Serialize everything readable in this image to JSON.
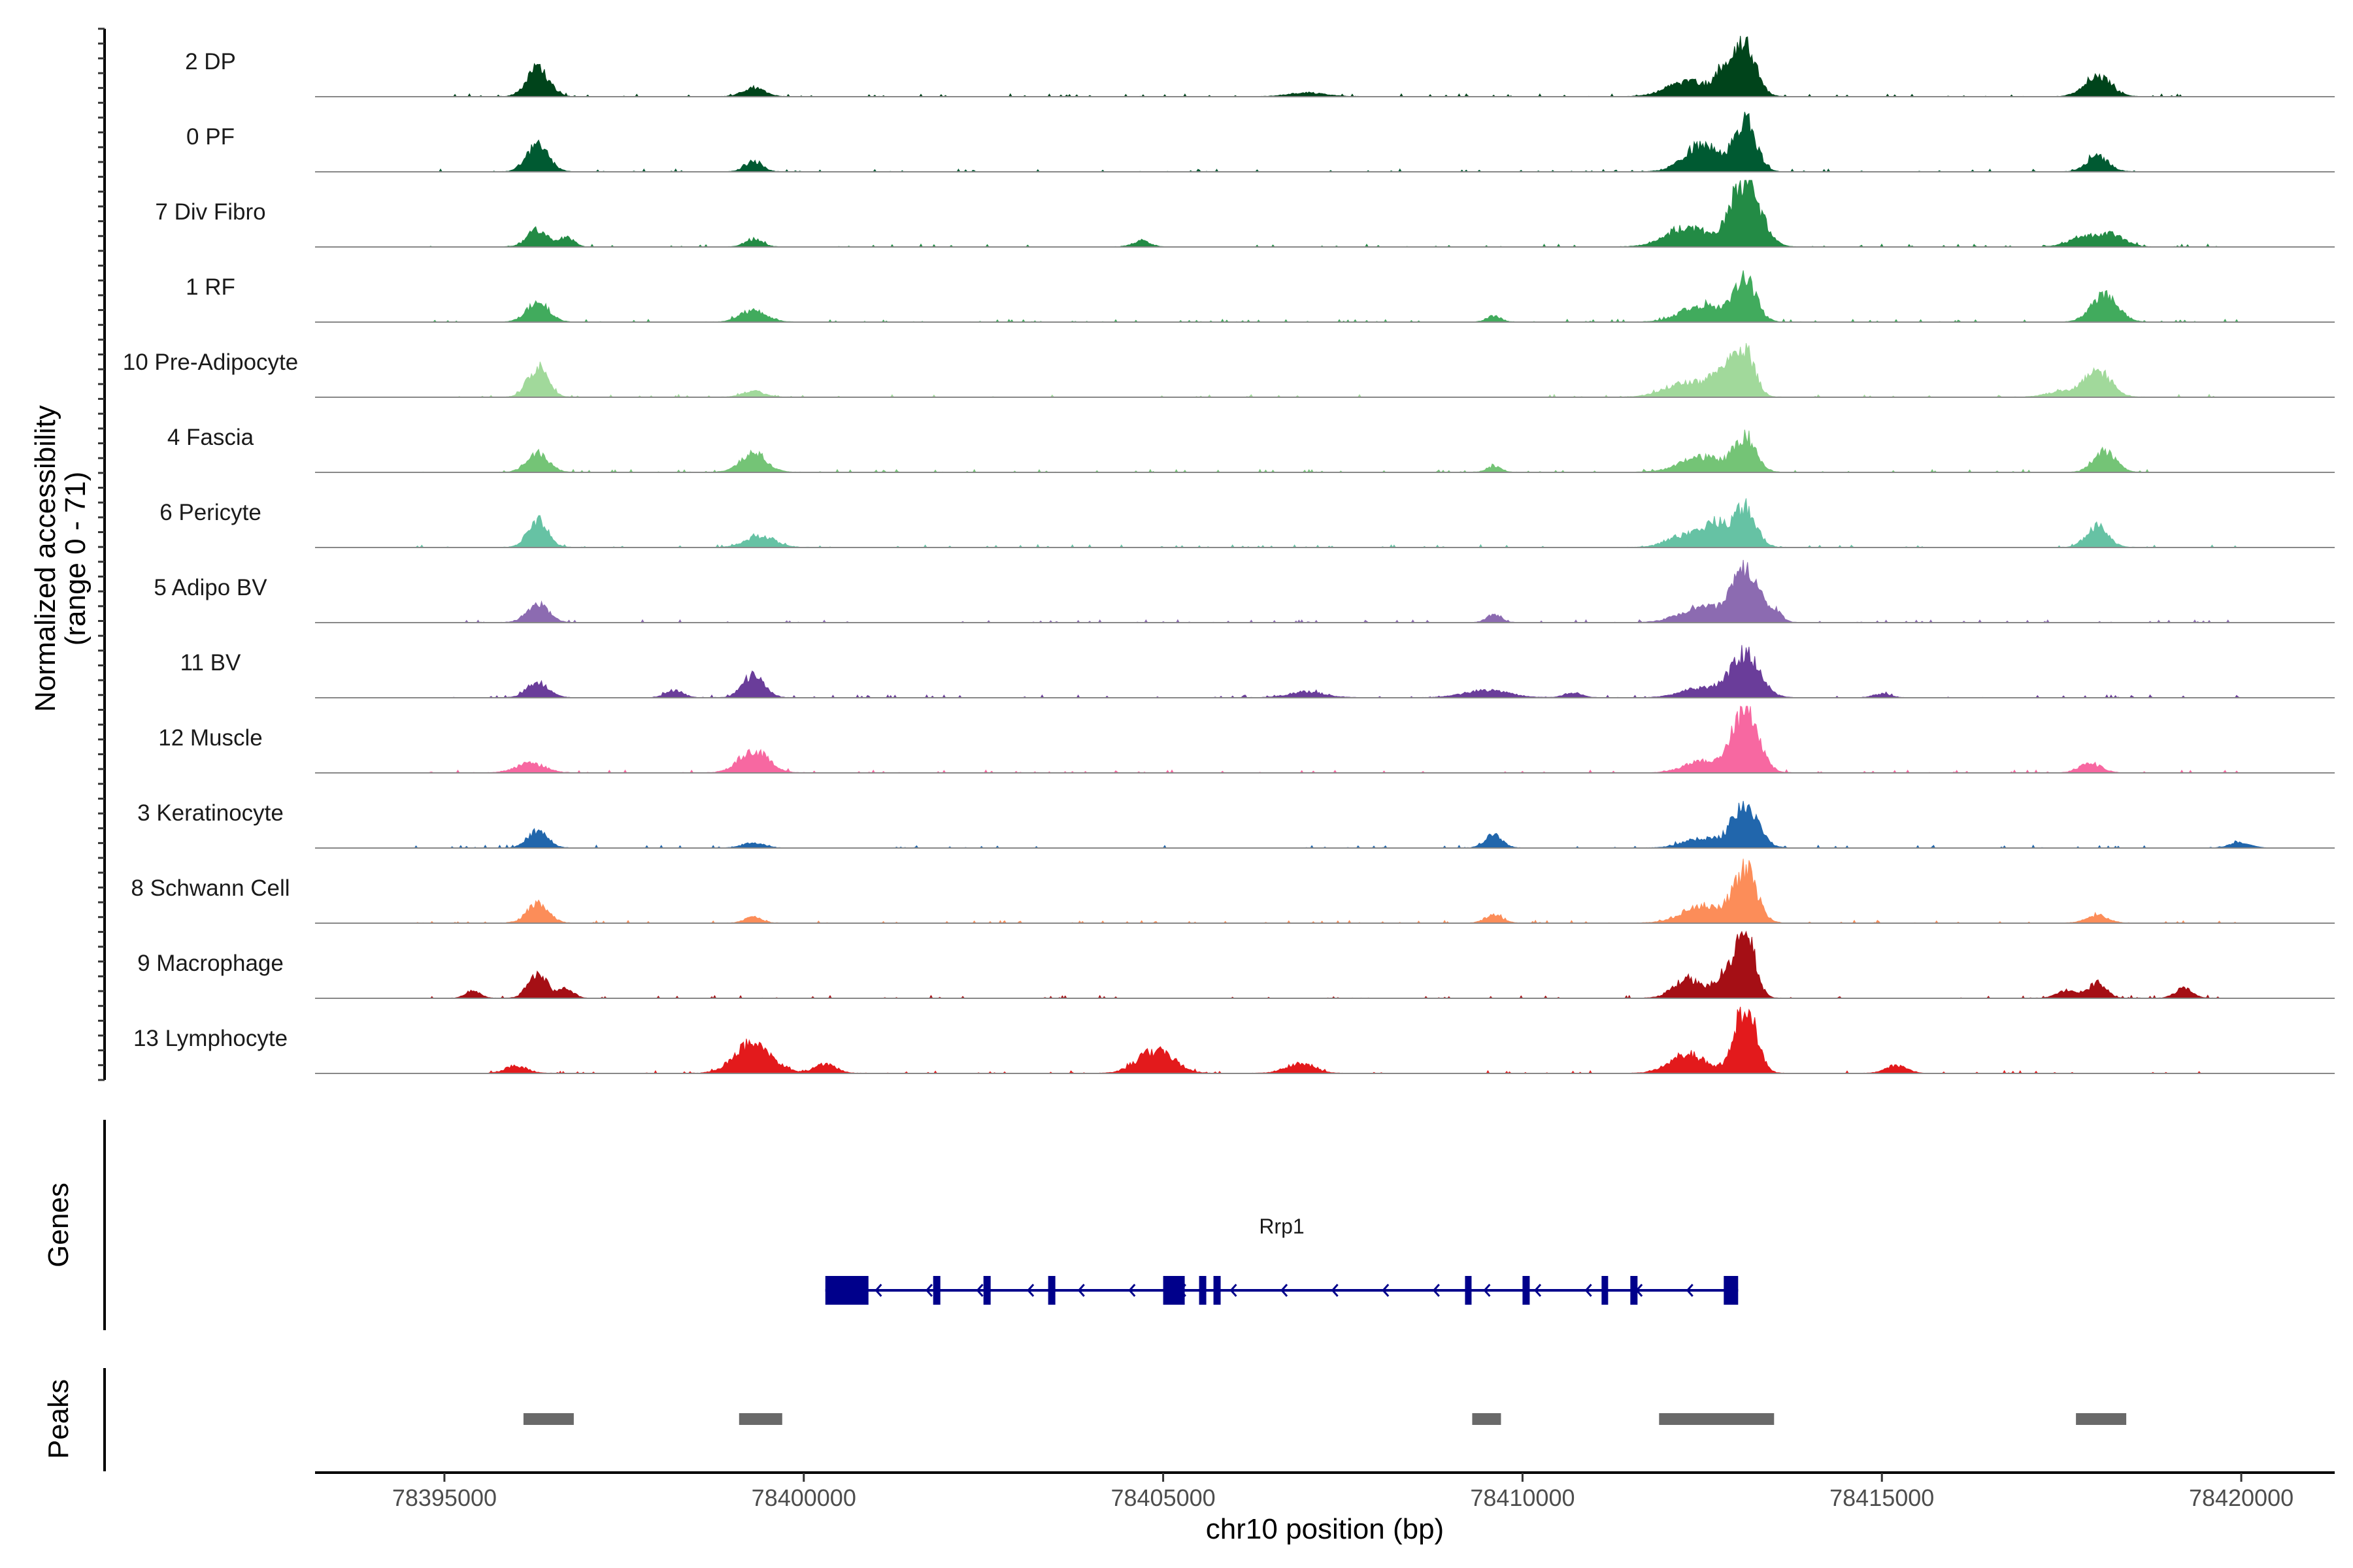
{
  "chart_data": {
    "type": "area",
    "title": "",
    "ylabel": "Normalized accessibility",
    "ylabel_range": "(range 0 - 71)",
    "ylim": [
      0,
      71
    ],
    "xlabel": "chr10 position (bp)",
    "xlim": [
      78393200,
      78421300
    ],
    "xticks": [
      78395000,
      78400000,
      78405000,
      78410000,
      78415000,
      78420000
    ],
    "xtick_labels": [
      "78395000",
      "78400000",
      "78405000",
      "78410000",
      "78415000",
      "78420000"
    ],
    "peak_centers": [
      78396300,
      78399300,
      78405000,
      78407000,
      78409600,
      78412500,
      78413100,
      78418000
    ],
    "series": [
      {
        "name": "2 DP",
        "color": "#00441b",
        "peaks": [
          [
            78396300,
            30,
            150
          ],
          [
            78399300,
            9,
            150
          ],
          [
            78407000,
            4,
            250
          ],
          [
            78412300,
            16,
            280
          ],
          [
            78412800,
            22,
            120
          ],
          [
            78413100,
            55,
            150
          ],
          [
            78418000,
            22,
            180
          ]
        ]
      },
      {
        "name": "0 PF",
        "color": "#005a32",
        "peaks": [
          [
            78396300,
            28,
            150
          ],
          [
            78399300,
            11,
            120
          ],
          [
            78412500,
            28,
            250
          ],
          [
            78413100,
            52,
            150
          ],
          [
            78418000,
            16,
            150
          ]
        ]
      },
      {
        "name": "7 Div Fibro",
        "color": "#238b45",
        "peaks": [
          [
            78396300,
            18,
            140
          ],
          [
            78396700,
            10,
            100
          ],
          [
            78399300,
            8,
            120
          ],
          [
            78404700,
            6,
            120
          ],
          [
            78412300,
            20,
            300
          ],
          [
            78413100,
            71,
            200
          ],
          [
            78417800,
            10,
            200
          ],
          [
            78418200,
            12,
            180
          ]
        ]
      },
      {
        "name": "1 RF",
        "color": "#41ab5d",
        "peaks": [
          [
            78396300,
            22,
            150
          ],
          [
            78399300,
            12,
            180
          ],
          [
            78409600,
            6,
            100
          ],
          [
            78412500,
            18,
            280
          ],
          [
            78413100,
            45,
            150
          ],
          [
            78418100,
            28,
            180
          ]
        ]
      },
      {
        "name": "10 Pre-Adipocyte",
        "color": "#a1d99b",
        "peaks": [
          [
            78396300,
            32,
            140
          ],
          [
            78399300,
            6,
            150
          ],
          [
            78412300,
            16,
            300
          ],
          [
            78412800,
            26,
            150
          ],
          [
            78413100,
            50,
            130
          ],
          [
            78417500,
            6,
            200
          ],
          [
            78418000,
            28,
            180
          ]
        ]
      },
      {
        "name": "4 Fascia",
        "color": "#74c476",
        "peaks": [
          [
            78396300,
            20,
            150
          ],
          [
            78399300,
            20,
            180
          ],
          [
            78409600,
            6,
            100
          ],
          [
            78412500,
            16,
            300
          ],
          [
            78413100,
            36,
            150
          ],
          [
            78418100,
            22,
            150
          ]
        ]
      },
      {
        "name": "6 Pericyte",
        "color": "#66c2a4",
        "peaks": [
          [
            78396300,
            28,
            140
          ],
          [
            78399400,
            12,
            200
          ],
          [
            78412300,
            14,
            250
          ],
          [
            78412700,
            22,
            150
          ],
          [
            78413100,
            42,
            150
          ],
          [
            78418000,
            22,
            150
          ]
        ]
      },
      {
        "name": "5 Adipo BV",
        "color": "#8c6bb1",
        "peaks": [
          [
            78396300,
            20,
            150
          ],
          [
            78409600,
            8,
            100
          ],
          [
            78412500,
            16,
            300
          ],
          [
            78413100,
            55,
            180
          ],
          [
            78413500,
            12,
            100
          ]
        ]
      },
      {
        "name": "11 BV",
        "color": "#6a3d9a",
        "peaks": [
          [
            78396300,
            16,
            150
          ],
          [
            78399300,
            24,
            150
          ],
          [
            78398200,
            8,
            120
          ],
          [
            78407000,
            6,
            250
          ],
          [
            78409500,
            8,
            300
          ],
          [
            78412500,
            10,
            280
          ],
          [
            78413100,
            45,
            200
          ],
          [
            78410700,
            5,
            120
          ],
          [
            78415000,
            4,
            120
          ]
        ]
      },
      {
        "name": "12 Muscle",
        "color": "#f768a1",
        "peaks": [
          [
            78396200,
            10,
            200
          ],
          [
            78399300,
            24,
            200
          ],
          [
            78412500,
            12,
            250
          ],
          [
            78413100,
            64,
            180
          ],
          [
            78417900,
            10,
            150
          ]
        ]
      },
      {
        "name": "3 Keratinocyte",
        "color": "#2166ac",
        "peaks": [
          [
            78396300,
            18,
            140
          ],
          [
            78399300,
            5,
            150
          ],
          [
            78409600,
            14,
            120
          ],
          [
            78412500,
            10,
            250
          ],
          [
            78413100,
            42,
            180
          ],
          [
            78420000,
            6,
            150
          ]
        ]
      },
      {
        "name": "8 Schwann Cell",
        "color": "#fc8d59",
        "peaks": [
          [
            78396300,
            20,
            150
          ],
          [
            78399300,
            6,
            120
          ],
          [
            78409600,
            8,
            120
          ],
          [
            78412500,
            18,
            280
          ],
          [
            78413100,
            55,
            160
          ],
          [
            78418000,
            8,
            150
          ]
        ]
      },
      {
        "name": "9 Macrophage",
        "color": "#a50f15",
        "peaks": [
          [
            78396300,
            28,
            130
          ],
          [
            78396700,
            10,
            100
          ],
          [
            78412300,
            20,
            200
          ],
          [
            78412800,
            24,
            130
          ],
          [
            78413100,
            70,
            130
          ],
          [
            78417600,
            8,
            150
          ],
          [
            78418000,
            16,
            120
          ],
          [
            78419200,
            10,
            120
          ],
          [
            78395400,
            8,
            100
          ]
        ]
      },
      {
        "name": "13 Lymphocyte",
        "color": "#e31a1c",
        "peaks": [
          [
            78396000,
            8,
            150
          ],
          [
            78399300,
            32,
            250
          ],
          [
            78404900,
            24,
            250
          ],
          [
            78406900,
            10,
            200
          ],
          [
            78412300,
            20,
            250
          ],
          [
            78413100,
            71,
            150
          ],
          [
            78415200,
            8,
            150
          ],
          [
            78400300,
            10,
            150
          ]
        ]
      }
    ],
    "genes": {
      "name": "Rrp1",
      "color": "#00008b",
      "strand": "-",
      "start": 78400300,
      "end": 78413000,
      "exons": [
        [
          78400300,
          78400900
        ],
        [
          78401800,
          78401900
        ],
        [
          78402500,
          78402600
        ],
        [
          78403400,
          78403500
        ],
        [
          78405000,
          78405300
        ],
        [
          78405500,
          78405600
        ],
        [
          78405700,
          78405800
        ],
        [
          78409200,
          78409250
        ],
        [
          78410000,
          78410100
        ],
        [
          78411100,
          78411150
        ],
        [
          78411500,
          78411600
        ],
        [
          78412800,
          78413000
        ]
      ]
    },
    "peaks": {
      "color": "#696969",
      "intervals": [
        [
          78396100,
          78396800
        ],
        [
          78399100,
          78399700
        ],
        [
          78409300,
          78409700
        ],
        [
          78411900,
          78413500
        ],
        [
          78417700,
          78418400
        ]
      ]
    },
    "panel_labels": {
      "genes": "Genes",
      "peaks": "Peaks"
    }
  }
}
